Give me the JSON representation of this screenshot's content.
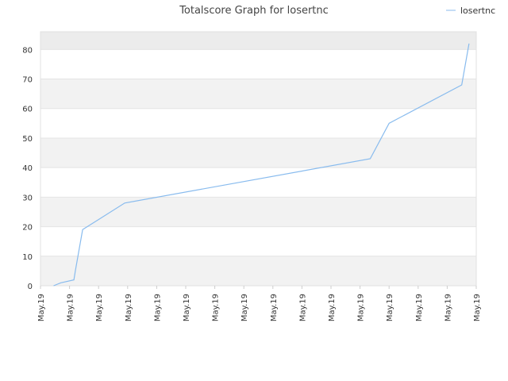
{
  "chart_data": {
    "type": "line",
    "title": "Totalscore Graph for losertnc",
    "xlabel": "",
    "ylabel": "",
    "x_tick_labels": [
      "May.19",
      "May.19",
      "May.19",
      "May.19",
      "May.19",
      "May.19",
      "May.19",
      "May.19",
      "May.19",
      "May.19",
      "May.19",
      "May.19",
      "May.19",
      "May.19",
      "May.19",
      "May.19"
    ],
    "y_ticks": [
      0,
      10,
      20,
      30,
      40,
      50,
      60,
      70,
      80
    ],
    "ylim": [
      0,
      86
    ],
    "xlim": [
      0,
      15
    ],
    "grid": true,
    "legend_position": "top-right",
    "series": [
      {
        "name": "losertnc",
        "color": "#88bbee",
        "points": [
          [
            0.45,
            0
          ],
          [
            0.7,
            1
          ],
          [
            1.15,
            2
          ],
          [
            1.2,
            5
          ],
          [
            1.45,
            19
          ],
          [
            2.9,
            28
          ],
          [
            11.35,
            43
          ],
          [
            12.0,
            55
          ],
          [
            14.5,
            68
          ],
          [
            14.75,
            82
          ]
        ]
      }
    ]
  }
}
